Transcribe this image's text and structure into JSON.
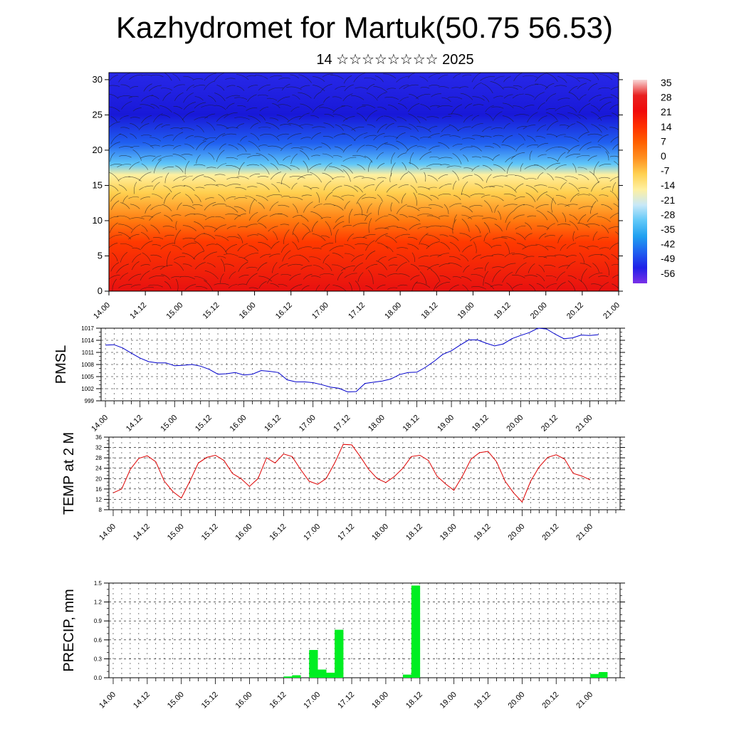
{
  "title": "Kazhydromet for Martuk(50.75 56.53)",
  "subtitle": "14 ☆☆☆☆☆☆☆☆ 2025",
  "time_ticks": [
    "14.00",
    "14.12",
    "15.00",
    "15.12",
    "16.00",
    "16.12",
    "17.00",
    "17.12",
    "18.00",
    "18.12",
    "19.00",
    "19.12",
    "20.00",
    "20.12",
    "21.00"
  ],
  "chart_data": [
    {
      "id": "profile",
      "type": "heatmap",
      "ylabel": "",
      "ylim": [
        0,
        31
      ],
      "yticks": [
        0,
        5,
        10,
        15,
        20,
        25,
        30
      ],
      "x_categories_ref": "time_ticks",
      "colorbar": {
        "labels": [
          "35",
          "28",
          "21",
          "14",
          "7",
          "0",
          "-7",
          "-14",
          "-21",
          "-28",
          "-35",
          "-42",
          "-49",
          "-56"
        ],
        "colors": [
          "#f8d8d8",
          "#e82020",
          "#f00a0a",
          "#ff3000",
          "#ff6000",
          "#ff9020",
          "#ffd050",
          "#fff0a0",
          "#c8e8f8",
          "#60c8f8",
          "#20a0f0",
          "#2060f0",
          "#2020e8",
          "#7a30e8"
        ]
      },
      "field_bands": [
        {
          "level": 0,
          "color": "#e81010"
        },
        {
          "level": 7,
          "color": "#ff3a00"
        },
        {
          "level": 10,
          "color": "#ff7a10"
        },
        {
          "level": 14,
          "color": "#ffd050"
        },
        {
          "level": 16.5,
          "color": "#fff0a0"
        },
        {
          "level": 18,
          "color": "#60c8f8"
        },
        {
          "level": 21,
          "color": "#2060f0"
        },
        {
          "level": 25,
          "color": "#1818d8"
        },
        {
          "level": 31,
          "color": "#2828e8"
        }
      ]
    },
    {
      "id": "pmsl",
      "type": "line",
      "ylabel": "PMSL",
      "ylim": [
        999,
        1017
      ],
      "yticks": [
        999,
        1002,
        1005,
        1008,
        1011,
        1014,
        1017
      ],
      "color": "#0000cc",
      "values": [
        1012.8,
        1012.9,
        1012.1,
        1010.8,
        1009.6,
        1008.7,
        1008.4,
        1008.4,
        1007.7,
        1007.8,
        1008.0,
        1007.6,
        1006.8,
        1005.6,
        1005.7,
        1006.0,
        1005.4,
        1005.6,
        1006.5,
        1006.3,
        1006.0,
        1004.2,
        1003.7,
        1003.7,
        1003.5,
        1003.0,
        1002.4,
        1002.1,
        1001.2,
        1001.3,
        1003.3,
        1003.6,
        1003.9,
        1004.4,
        1005.5,
        1006.0,
        1006.1,
        1007.3,
        1008.8,
        1010.5,
        1011.4,
        1012.8,
        1014.1,
        1014.1,
        1013.3,
        1012.6,
        1013.1,
        1014.4,
        1015.2,
        1015.9,
        1017.0,
        1016.8,
        1015.5,
        1014.4,
        1014.6,
        1015.3,
        1015.2,
        1015.4
      ]
    },
    {
      "id": "temp",
      "type": "line",
      "ylabel": "TEMP at 2 M",
      "ylim": [
        8,
        36
      ],
      "yticks": [
        8,
        12,
        16,
        20,
        24,
        28,
        32,
        36
      ],
      "color": "#dd0000",
      "values": [
        14.5,
        16.0,
        23.5,
        27.8,
        28.8,
        26.5,
        19.0,
        15.0,
        12.5,
        19.0,
        26.0,
        28.2,
        29.0,
        27.0,
        22.0,
        20.0,
        17.0,
        20.0,
        28.0,
        26.0,
        29.5,
        28.5,
        23.5,
        19.0,
        17.8,
        20.0,
        26.0,
        33.2,
        33.0,
        28.5,
        23.5,
        20.0,
        18.5,
        20.8,
        24.0,
        28.5,
        29.0,
        27.0,
        21.0,
        18.0,
        15.5,
        21.0,
        27.5,
        30.0,
        30.5,
        26.5,
        19.0,
        14.5,
        11.0,
        19.0,
        24.5,
        28.2,
        29.2,
        27.5,
        22.0,
        21.0,
        19.5
      ]
    },
    {
      "id": "precip",
      "type": "bar",
      "ylabel": "PRECIP, mm",
      "ylim": [
        0,
        1.5
      ],
      "yticks": [
        "0.0",
        "0.3",
        "0.6",
        "0.9",
        "1.2",
        "1.5"
      ],
      "color": "#00ee22",
      "values": [
        0,
        0,
        0,
        0,
        0,
        0,
        0,
        0,
        0,
        0,
        0,
        0,
        0,
        0,
        0,
        0,
        0,
        0,
        0,
        0,
        0.02,
        0.04,
        0,
        0.44,
        0.13,
        0.08,
        0.76,
        0,
        0,
        0,
        0,
        0,
        0,
        0,
        0.05,
        1.46,
        0,
        0,
        0,
        0,
        0,
        0,
        0,
        0,
        0,
        0,
        0,
        0,
        0,
        0,
        0,
        0,
        0,
        0,
        0,
        0,
        0.06,
        0.09
      ]
    }
  ]
}
